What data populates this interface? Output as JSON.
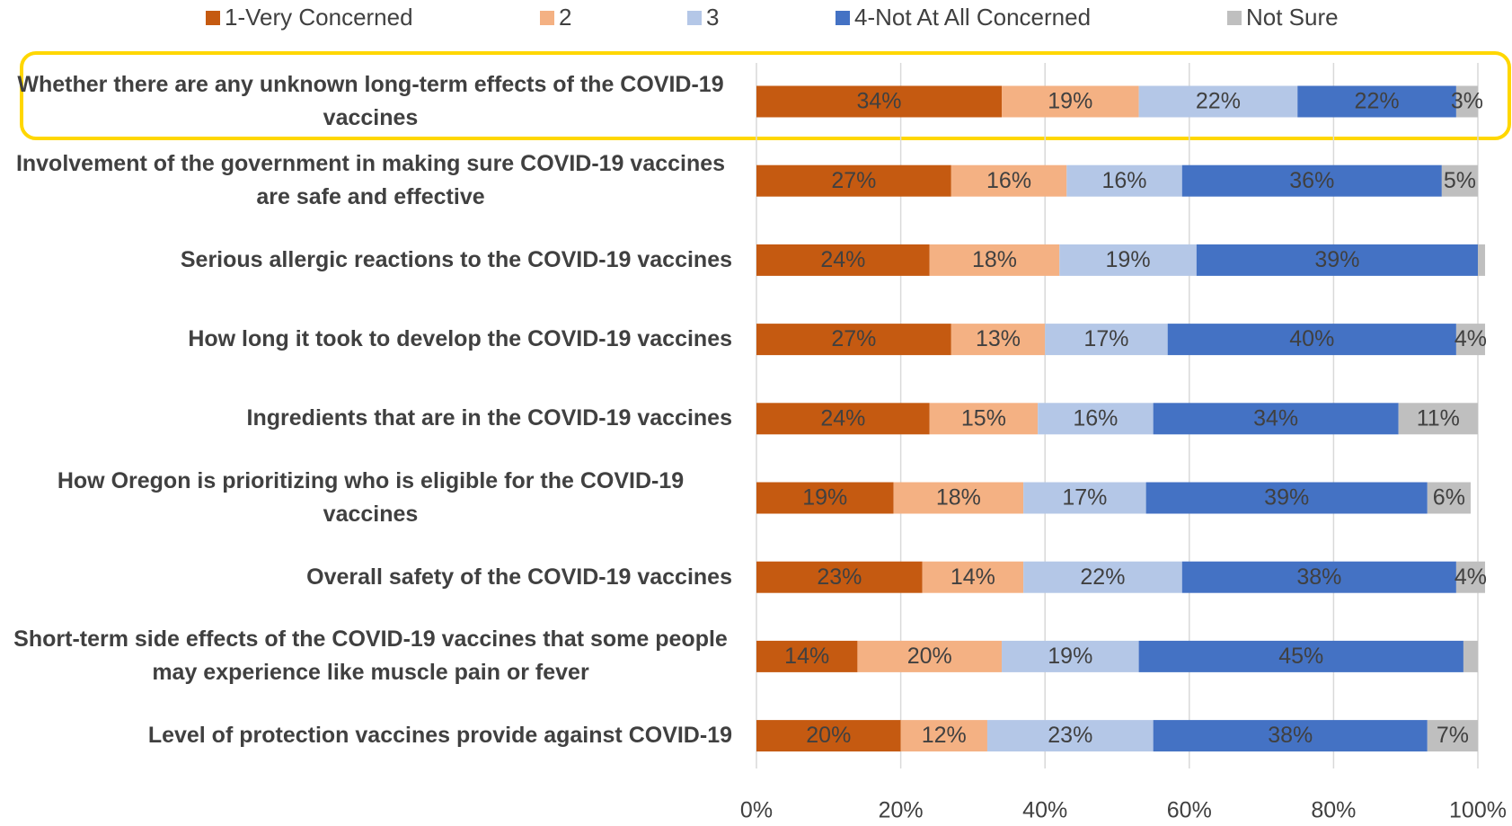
{
  "chart_data": {
    "type": "stacked_bar_horizontal",
    "categories": [
      "Whether there are any unknown long-term effects of the COVID-19 vaccines",
      "Involvement of the government in making sure COVID-19 vaccines are safe and effective",
      "Serious allergic reactions to the COVID-19 vaccines",
      "How long it took to develop the COVID-19 vaccines",
      "Ingredients that are in the COVID-19 vaccines",
      "How Oregon is prioritizing who is eligible for the COVID-19 vaccines",
      "Overall safety of the COVID-19 vaccines",
      "Short-term side effects of the COVID-19 vaccines that some people may experience like muscle pain or fever",
      "Level of protection vaccines provide against COVID-19"
    ],
    "series": [
      {
        "name": "1-Very Concerned",
        "color": "#c55a11",
        "values": [
          34,
          27,
          24,
          27,
          24,
          19,
          23,
          14,
          20
        ],
        "value_labels": [
          "34%",
          "27%",
          "24%",
          "27%",
          "24%",
          "19%",
          "23%",
          "14%",
          "20%"
        ]
      },
      {
        "name": "2",
        "color": "#f4b183",
        "values": [
          19,
          16,
          18,
          13,
          15,
          18,
          14,
          20,
          12
        ],
        "value_labels": [
          "19%",
          "16%",
          "18%",
          "13%",
          "15%",
          "18%",
          "14%",
          "20%",
          "12%"
        ]
      },
      {
        "name": "3",
        "color": "#b4c7e7",
        "values": [
          22,
          16,
          19,
          17,
          16,
          17,
          22,
          19,
          23
        ],
        "value_labels": [
          "22%",
          "16%",
          "19%",
          "17%",
          "16%",
          "17%",
          "22%",
          "19%",
          "23%"
        ]
      },
      {
        "name": "4-Not At All Concerned",
        "color": "#4472c4",
        "values": [
          22,
          36,
          39,
          40,
          34,
          39,
          38,
          45,
          38
        ],
        "value_labels": [
          "22%",
          "36%",
          "39%",
          "40%",
          "34%",
          "39%",
          "38%",
          "45%",
          "38%"
        ]
      },
      {
        "name": "Not Sure",
        "color": "#bfbfbf",
        "values": [
          3,
          5,
          1,
          4,
          11,
          6,
          4,
          2,
          7
        ],
        "value_labels": [
          "3%",
          "5%",
          null,
          "4%",
          "11%",
          "6%",
          "4%",
          null,
          "7%"
        ]
      }
    ],
    "xlim": [
      0,
      100
    ],
    "xticks": [
      {
        "value": 0,
        "label": "0%"
      },
      {
        "value": 20,
        "label": "20%"
      },
      {
        "value": 40,
        "label": "40%"
      },
      {
        "value": 60,
        "label": "60%"
      },
      {
        "value": 80,
        "label": "80%"
      },
      {
        "value": 100,
        "label": "100%"
      }
    ],
    "grid": true,
    "legend": "top"
  }
}
